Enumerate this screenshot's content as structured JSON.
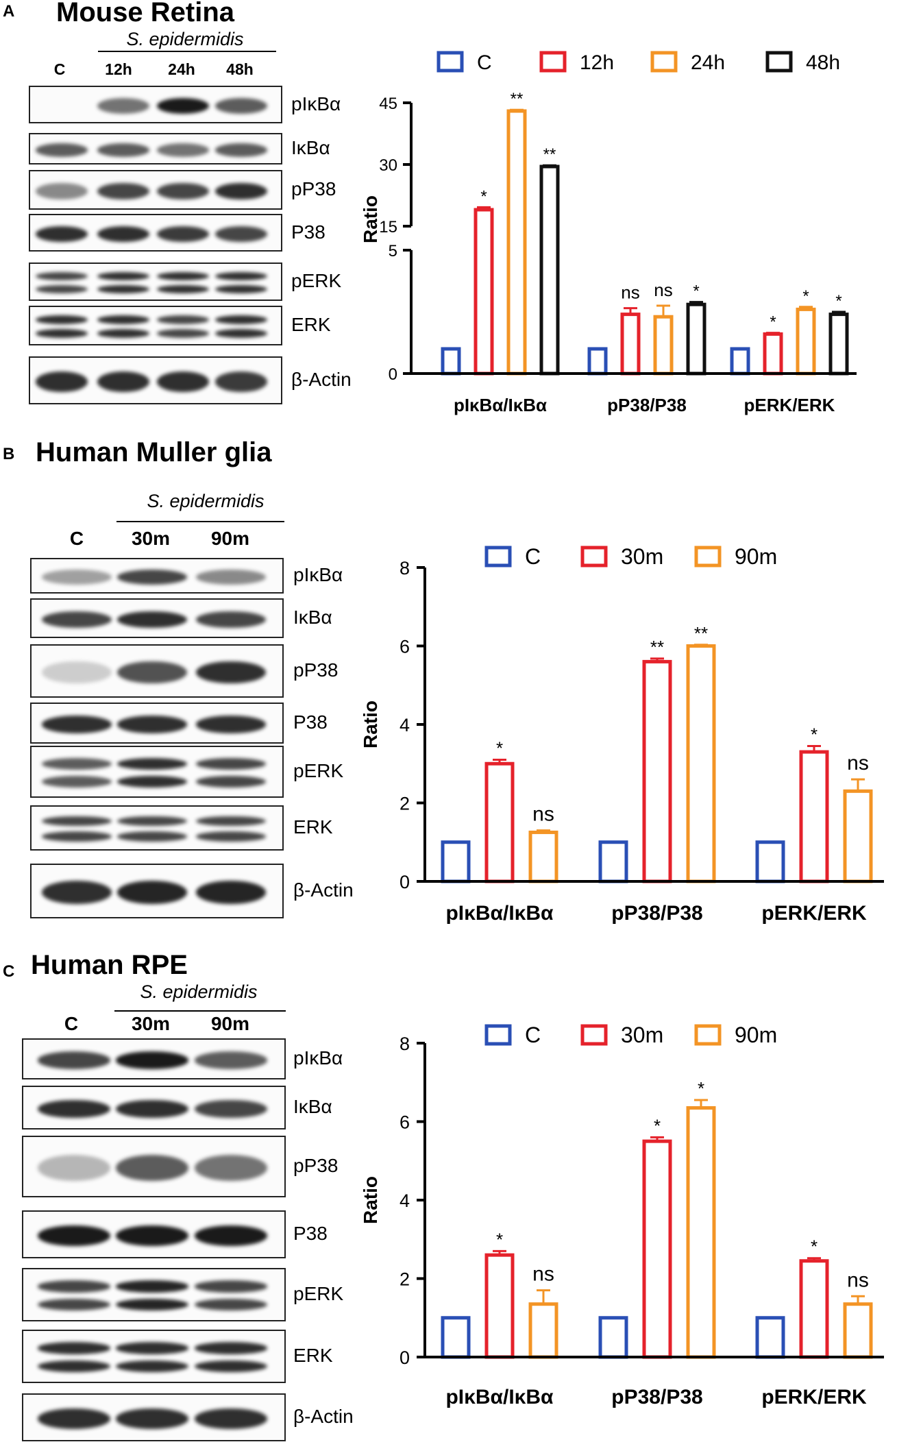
{
  "panels": [
    {
      "letter": "A",
      "title": "Mouse Retina",
      "treatment": "S. epidermidis",
      "lanes": [
        "C",
        "12h",
        "24h",
        "48h"
      ],
      "blots": [
        "pIκBα",
        "IκBα",
        "pP38",
        "P38",
        "pERK",
        "ERK",
        "β-Actin"
      ]
    },
    {
      "letter": "B",
      "title": "Human Muller glia",
      "treatment": "S. epidermidis",
      "lanes": [
        "C",
        "30m",
        "90m"
      ],
      "blots": [
        "pIκBα",
        "IκBα",
        "pP38",
        "P38",
        "pERK",
        "ERK",
        "β-Actin"
      ]
    },
    {
      "letter": "C",
      "title": "Human RPE",
      "treatment": "S. epidermidis",
      "lanes": [
        "C",
        "30m",
        "90m"
      ],
      "blots": [
        "pIκBα",
        "IκBα",
        "pP38",
        "P38",
        "pERK",
        "ERK",
        "β-Actin"
      ]
    }
  ],
  "chart_data": [
    {
      "panel": "A",
      "type": "bar",
      "ylabel": "Ratio",
      "broken_axis": true,
      "lower_range": [
        0,
        5
      ],
      "upper_range": [
        15,
        45
      ],
      "lower_ticks": [
        "0",
        "5"
      ],
      "upper_ticks": [
        "15",
        "30",
        "45"
      ],
      "categories": [
        "pIκBα/IκBα",
        "pP38/P38",
        "pERK/ERK"
      ],
      "series": [
        {
          "name": "C",
          "color": "#2a4fb5",
          "values": [
            1,
            1,
            1
          ],
          "errors": [
            0,
            0,
            0
          ],
          "sig": [
            "",
            "",
            ""
          ]
        },
        {
          "name": "12h",
          "color": "#e5222b",
          "values": [
            19,
            2.4,
            1.6
          ],
          "errors": [
            0.6,
            0.25,
            0.05
          ],
          "sig": [
            "*",
            "ns",
            "*"
          ]
        },
        {
          "name": "24h",
          "color": "#f39425",
          "values": [
            43,
            2.3,
            2.6
          ],
          "errors": [
            0.3,
            0.45,
            0.1
          ],
          "sig": [
            "**",
            "ns",
            "*"
          ]
        },
        {
          "name": "48h",
          "color": "#111111",
          "values": [
            29.5,
            2.8,
            2.4
          ],
          "errors": [
            0.3,
            0.1,
            0.1
          ],
          "sig": [
            "**",
            "*",
            "*"
          ]
        }
      ]
    },
    {
      "panel": "B",
      "type": "bar",
      "ylabel": "Ratio",
      "ylim": [
        0,
        8
      ],
      "yticks": [
        "0",
        "2",
        "4",
        "6",
        "8"
      ],
      "categories": [
        "pIκBα/IκBα",
        "pP38/P38",
        "pERK/ERK"
      ],
      "series": [
        {
          "name": "C",
          "color": "#2a4fb5",
          "values": [
            1,
            1,
            1
          ],
          "errors": [
            0,
            0,
            0
          ],
          "sig": [
            "",
            "",
            ""
          ]
        },
        {
          "name": "30m",
          "color": "#e5222b",
          "values": [
            3.0,
            5.6,
            3.3
          ],
          "errors": [
            0.1,
            0.08,
            0.15
          ],
          "sig": [
            "*",
            "**",
            "*"
          ]
        },
        {
          "name": "90m",
          "color": "#f39425",
          "values": [
            1.25,
            6.0,
            2.3
          ],
          "errors": [
            0.05,
            0.03,
            0.3
          ],
          "sig": [
            "ns",
            "**",
            "ns"
          ]
        }
      ]
    },
    {
      "panel": "C",
      "type": "bar",
      "ylabel": "Ratio",
      "ylim": [
        0,
        8
      ],
      "yticks": [
        "0",
        "2",
        "4",
        "6",
        "8"
      ],
      "categories": [
        "pIκBα/IκBα",
        "pP38/P38",
        "pERK/ERK"
      ],
      "series": [
        {
          "name": "C",
          "color": "#2a4fb5",
          "values": [
            1,
            1,
            1
          ],
          "errors": [
            0,
            0,
            0
          ],
          "sig": [
            "",
            "",
            ""
          ]
        },
        {
          "name": "30m",
          "color": "#e5222b",
          "values": [
            2.6,
            5.5,
            2.45
          ],
          "errors": [
            0.1,
            0.1,
            0.07
          ],
          "sig": [
            "*",
            "*",
            "*"
          ]
        },
        {
          "name": "90m",
          "color": "#f39425",
          "values": [
            1.35,
            6.35,
            1.35
          ],
          "errors": [
            0.35,
            0.2,
            0.2
          ],
          "sig": [
            "ns",
            "*",
            "ns"
          ]
        }
      ]
    }
  ]
}
